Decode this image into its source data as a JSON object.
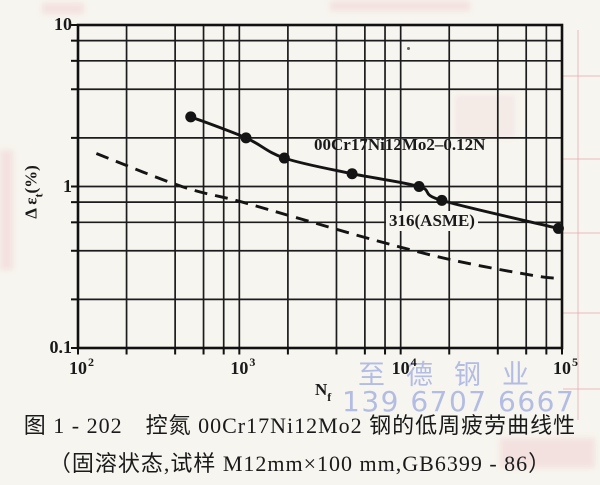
{
  "figure": {
    "caption_line1": "图 1 - 202　控氮 00Cr17Ni12Mo2 钢的低周疲劳曲线性",
    "caption_line2": "（固溶状态,试样 M12mm×100 mm,GB6399 - 86）"
  },
  "watermark": {
    "line1": "至德钢业",
    "line2": "139 6707 6667",
    "color": "#b3bce3"
  },
  "colors": {
    "ink": "#1a1a1a",
    "paper": "#f7f5ef"
  },
  "chart_data": {
    "type": "line",
    "x_scale": "log",
    "y_scale": "log",
    "xlim": [
      100,
      100000
    ],
    "ylim": [
      0.1,
      10
    ],
    "grid": true,
    "xlabel": {
      "base": "N",
      "sub": "f"
    },
    "ylabel": {
      "prefix": "Δ ε",
      "sub": "t",
      "suffix": "(%)"
    },
    "x_gridlines": [
      100,
      200,
      400,
      600,
      800,
      1000,
      2000,
      4000,
      6000,
      8000,
      10000,
      20000,
      40000,
      60000,
      80000,
      100000
    ],
    "y_gridlines": [
      10,
      8,
      6,
      4,
      2,
      1,
      0.8,
      0.6,
      0.4,
      0.2,
      0.1
    ],
    "x_ticks": [
      {
        "value": 100,
        "base": "10",
        "exp": "2"
      },
      {
        "value": 1000,
        "base": "10",
        "exp": "3"
      },
      {
        "value": 10000,
        "base": "10",
        "exp": "4"
      },
      {
        "value": 100000,
        "base": "10",
        "exp": "5"
      }
    ],
    "y_ticks": [
      {
        "value": 10,
        "label": "10"
      },
      {
        "value": 1,
        "label": "1"
      },
      {
        "value": 0.1,
        "label": "0.1"
      }
    ],
    "series": [
      {
        "name": "00Cr17Ni12Mo2–0.12N",
        "style": "solid",
        "marker": "circle",
        "x": [
          500,
          1100,
          1900,
          5000,
          13000,
          18000,
          95000
        ],
        "y": [
          2.7,
          2.0,
          1.5,
          1.2,
          1.0,
          0.82,
          0.55
        ]
      },
      {
        "name": "316(ASME)",
        "style": "dashed",
        "marker": "none",
        "x": [
          130,
          440,
          1000,
          2400,
          7200,
          21000,
          68000,
          100000
        ],
        "y": [
          1.6,
          1.0,
          0.81,
          0.63,
          0.46,
          0.35,
          0.28,
          0.27
        ]
      }
    ],
    "legend_position": "inline-labels"
  }
}
